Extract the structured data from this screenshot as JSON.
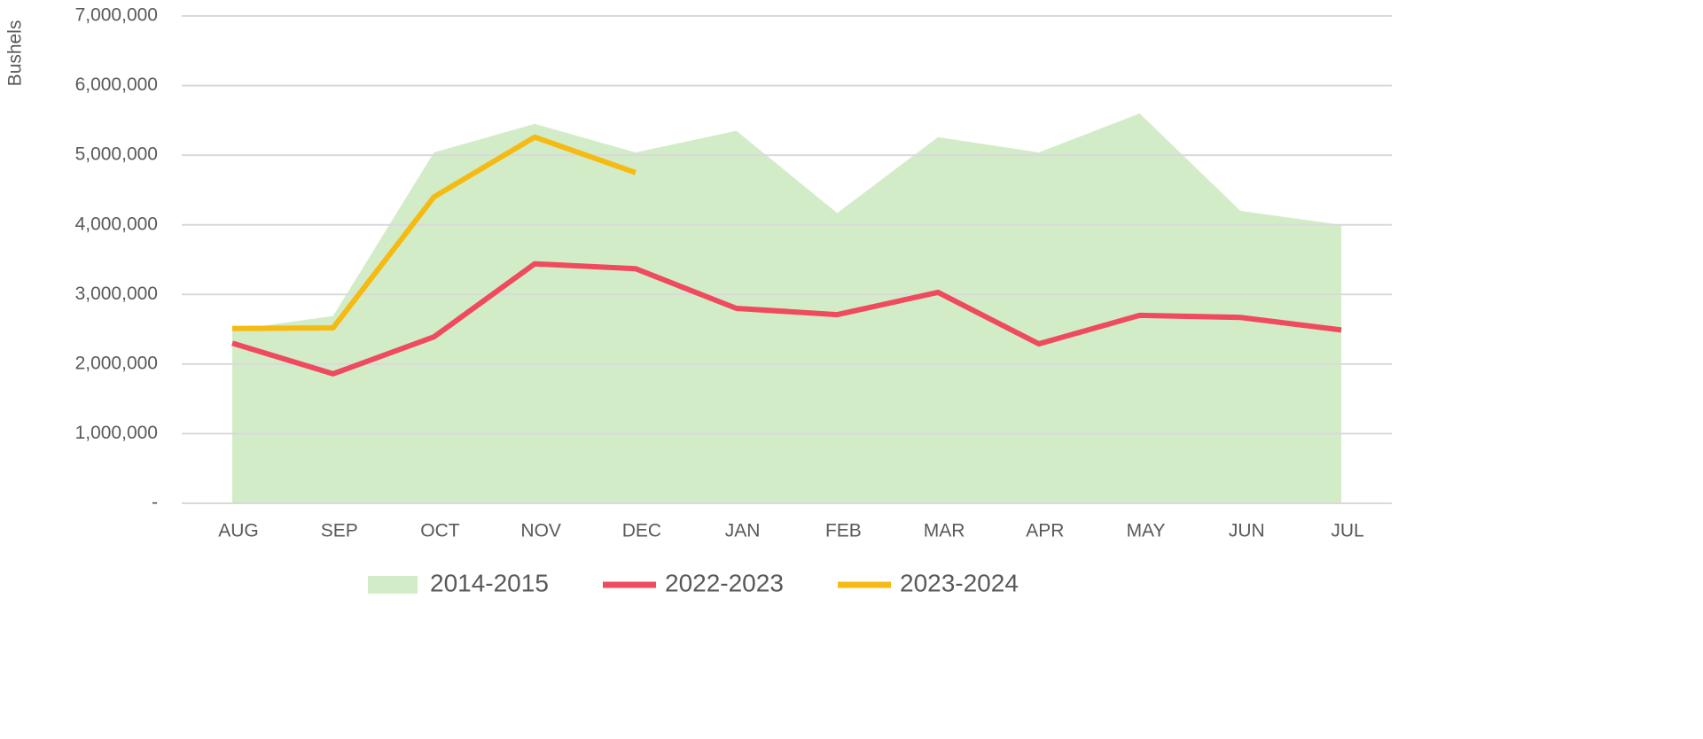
{
  "chart_data": {
    "type": "line",
    "y_label": "Bushels",
    "categories": [
      "AUG",
      "SEP",
      "OCT",
      "NOV",
      "DEC",
      "JAN",
      "FEB",
      "MAR",
      "APR",
      "MAY",
      "JUN",
      "JUL"
    ],
    "series": [
      {
        "name": "2014-2015",
        "kind": "area",
        "color": "#d3ecc8",
        "values": [
          2490000,
          2690000,
          5040000,
          5450000,
          5040000,
          5350000,
          4170000,
          5260000,
          5040000,
          5600000,
          4200000,
          4000000
        ]
      },
      {
        "name": "2022-2023",
        "kind": "line",
        "color": "#ef4a5e",
        "values": [
          2300000,
          1860000,
          2390000,
          3440000,
          3370000,
          2800000,
          2710000,
          3030000,
          2290000,
          2700000,
          2670000,
          2490000
        ]
      },
      {
        "name": "2023-2024",
        "kind": "line",
        "color": "#f5bb12",
        "values": [
          2510000,
          2520000,
          4400000,
          5260000,
          4750000,
          null,
          null,
          null,
          null,
          null,
          null,
          null
        ]
      }
    ],
    "ylim": [
      0,
      7000000
    ],
    "yticks": [
      {
        "value": 0,
        "label": "-"
      },
      {
        "value": 1000000,
        "label": "1,000,000"
      },
      {
        "value": 2000000,
        "label": "2,000,000"
      },
      {
        "value": 3000000,
        "label": "3,000,000"
      },
      {
        "value": 4000000,
        "label": "4,000,000"
      },
      {
        "value": 5000000,
        "label": "5,000,000"
      },
      {
        "value": 6000000,
        "label": "6,000,000"
      },
      {
        "value": 7000000,
        "label": "7,000,000"
      }
    ],
    "grid": true,
    "legend": "bottom"
  }
}
